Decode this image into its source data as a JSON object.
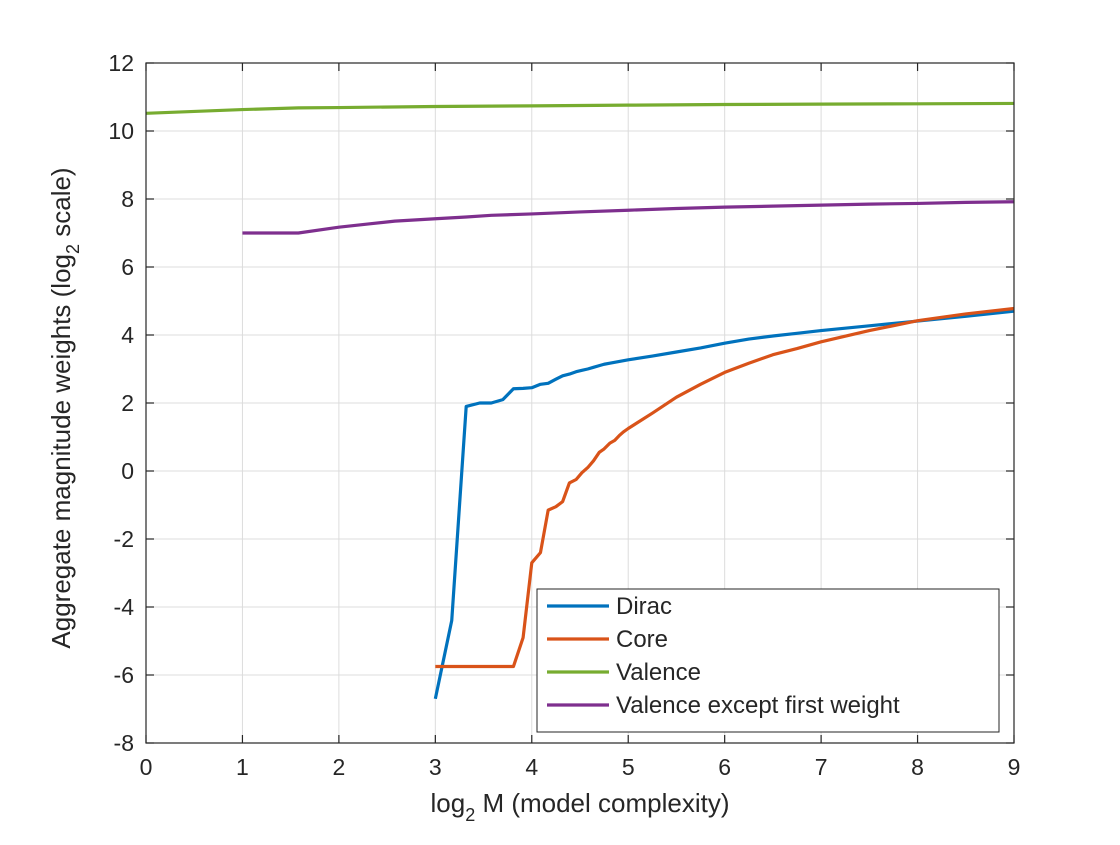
{
  "chart_data": {
    "type": "line",
    "title": "",
    "xlabel": {
      "prefix": "log",
      "subscript": "2",
      "suffix": " M (model complexity)"
    },
    "ylabel": {
      "prefix": "Aggregate magnitude weights (log",
      "subscript": "2",
      "suffix": " scale)"
    },
    "xlim": [
      0,
      9
    ],
    "ylim": [
      -8,
      12
    ],
    "xticks": [
      0,
      1,
      2,
      3,
      4,
      5,
      6,
      7,
      8,
      9
    ],
    "xtick_labels": [
      "0",
      "1",
      "2",
      "3",
      "4",
      "5",
      "6",
      "7",
      "8",
      "9"
    ],
    "yticks": [
      -8,
      -6,
      -4,
      -2,
      0,
      2,
      4,
      6,
      8,
      10,
      12
    ],
    "ytick_labels": [
      "-8",
      "-6",
      "-4",
      "-2",
      "0",
      "2",
      "4",
      "6",
      "8",
      "10",
      "12"
    ],
    "grid": true,
    "legend_position": "bottom-right",
    "series": [
      {
        "name": "Dirac",
        "color": "#0072BD",
        "points": [
          [
            3.0,
            -6.7
          ],
          [
            3.17,
            -4.4
          ],
          [
            3.32,
            1.9
          ],
          [
            3.46,
            2.0
          ],
          [
            3.58,
            2.0
          ],
          [
            3.7,
            2.1
          ],
          [
            3.81,
            2.42
          ],
          [
            3.91,
            2.43
          ],
          [
            4.0,
            2.45
          ],
          [
            4.09,
            2.55
          ],
          [
            4.17,
            2.58
          ],
          [
            4.25,
            2.7
          ],
          [
            4.32,
            2.8
          ],
          [
            4.39,
            2.85
          ],
          [
            4.46,
            2.92
          ],
          [
            4.52,
            2.96
          ],
          [
            4.58,
            3.0
          ],
          [
            4.64,
            3.05
          ],
          [
            4.7,
            3.1
          ],
          [
            4.75,
            3.14
          ],
          [
            4.81,
            3.17
          ],
          [
            5.0,
            3.27
          ],
          [
            5.25,
            3.38
          ],
          [
            5.5,
            3.5
          ],
          [
            5.75,
            3.62
          ],
          [
            6.0,
            3.76
          ],
          [
            6.25,
            3.88
          ],
          [
            6.5,
            3.97
          ],
          [
            6.75,
            4.05
          ],
          [
            7.0,
            4.13
          ],
          [
            7.5,
            4.27
          ],
          [
            8.0,
            4.41
          ],
          [
            8.5,
            4.55
          ],
          [
            9.0,
            4.7
          ]
        ]
      },
      {
        "name": "Core",
        "color": "#D95319",
        "points": [
          [
            3.0,
            -5.75
          ],
          [
            3.32,
            -5.75
          ],
          [
            3.58,
            -5.75
          ],
          [
            3.81,
            -5.75
          ],
          [
            3.91,
            -4.9
          ],
          [
            4.0,
            -2.7
          ],
          [
            4.09,
            -2.4
          ],
          [
            4.17,
            -1.15
          ],
          [
            4.25,
            -1.05
          ],
          [
            4.32,
            -0.9
          ],
          [
            4.39,
            -0.35
          ],
          [
            4.46,
            -0.25
          ],
          [
            4.52,
            -0.05
          ],
          [
            4.58,
            0.1
          ],
          [
            4.64,
            0.3
          ],
          [
            4.7,
            0.55
          ],
          [
            4.75,
            0.65
          ],
          [
            4.81,
            0.82
          ],
          [
            4.86,
            0.9
          ],
          [
            4.91,
            1.05
          ],
          [
            4.95,
            1.15
          ],
          [
            5.0,
            1.25
          ],
          [
            5.25,
            1.7
          ],
          [
            5.5,
            2.17
          ],
          [
            5.75,
            2.55
          ],
          [
            6.0,
            2.9
          ],
          [
            6.25,
            3.17
          ],
          [
            6.5,
            3.42
          ],
          [
            6.75,
            3.6
          ],
          [
            7.0,
            3.8
          ],
          [
            7.5,
            4.13
          ],
          [
            8.0,
            4.42
          ],
          [
            8.5,
            4.62
          ],
          [
            9.0,
            4.78
          ]
        ]
      },
      {
        "name": "Valence",
        "color": "#77AC30",
        "points": [
          [
            0.0,
            10.52
          ],
          [
            1.0,
            10.63
          ],
          [
            1.58,
            10.68
          ],
          [
            2.0,
            10.69
          ],
          [
            3.0,
            10.72
          ],
          [
            4.0,
            10.74
          ],
          [
            5.0,
            10.76
          ],
          [
            6.0,
            10.78
          ],
          [
            7.0,
            10.79
          ],
          [
            8.0,
            10.8
          ],
          [
            9.0,
            10.81
          ]
        ]
      },
      {
        "name": "Valence except first weight",
        "color": "#7E2F8E",
        "points": [
          [
            1.0,
            7.0
          ],
          [
            1.58,
            7.0
          ],
          [
            2.0,
            7.17
          ],
          [
            2.32,
            7.27
          ],
          [
            2.58,
            7.35
          ],
          [
            3.0,
            7.42
          ],
          [
            3.32,
            7.47
          ],
          [
            3.58,
            7.52
          ],
          [
            4.0,
            7.56
          ],
          [
            4.5,
            7.62
          ],
          [
            5.0,
            7.67
          ],
          [
            5.5,
            7.72
          ],
          [
            6.0,
            7.76
          ],
          [
            6.5,
            7.79
          ],
          [
            7.0,
            7.82
          ],
          [
            7.5,
            7.85
          ],
          [
            8.0,
            7.87
          ],
          [
            8.5,
            7.9
          ],
          [
            9.0,
            7.92
          ]
        ]
      }
    ]
  }
}
